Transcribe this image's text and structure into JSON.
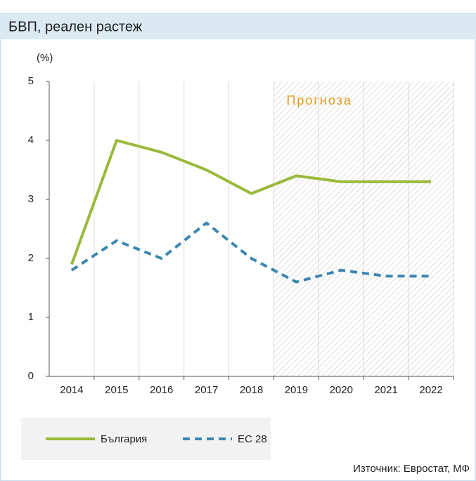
{
  "chart_data": {
    "type": "line",
    "title": "БВП, реален растеж",
    "y_label": "(%)",
    "source": "Източник: Евростат, МФ",
    "forecast": {
      "label": "Прогноза",
      "from": "2019"
    },
    "categories": [
      "2014",
      "2015",
      "2016",
      "2017",
      "2018",
      "2019",
      "2020",
      "2021",
      "2022"
    ],
    "series": [
      {
        "name": "България",
        "color": "#9bb83a",
        "dashed": false,
        "values": [
          1.9,
          4.0,
          3.8,
          3.5,
          3.1,
          3.4,
          3.3,
          3.3,
          3.3
        ]
      },
      {
        "name": "ЕС 28",
        "color": "#3c87b1",
        "dashed": true,
        "values": [
          1.8,
          2.3,
          2.0,
          2.6,
          2.0,
          1.6,
          1.8,
          1.7,
          1.7
        ]
      }
    ],
    "ylim": [
      0,
      5
    ],
    "yticks": [
      0,
      1,
      2,
      3,
      4,
      5
    ],
    "grid": true
  }
}
